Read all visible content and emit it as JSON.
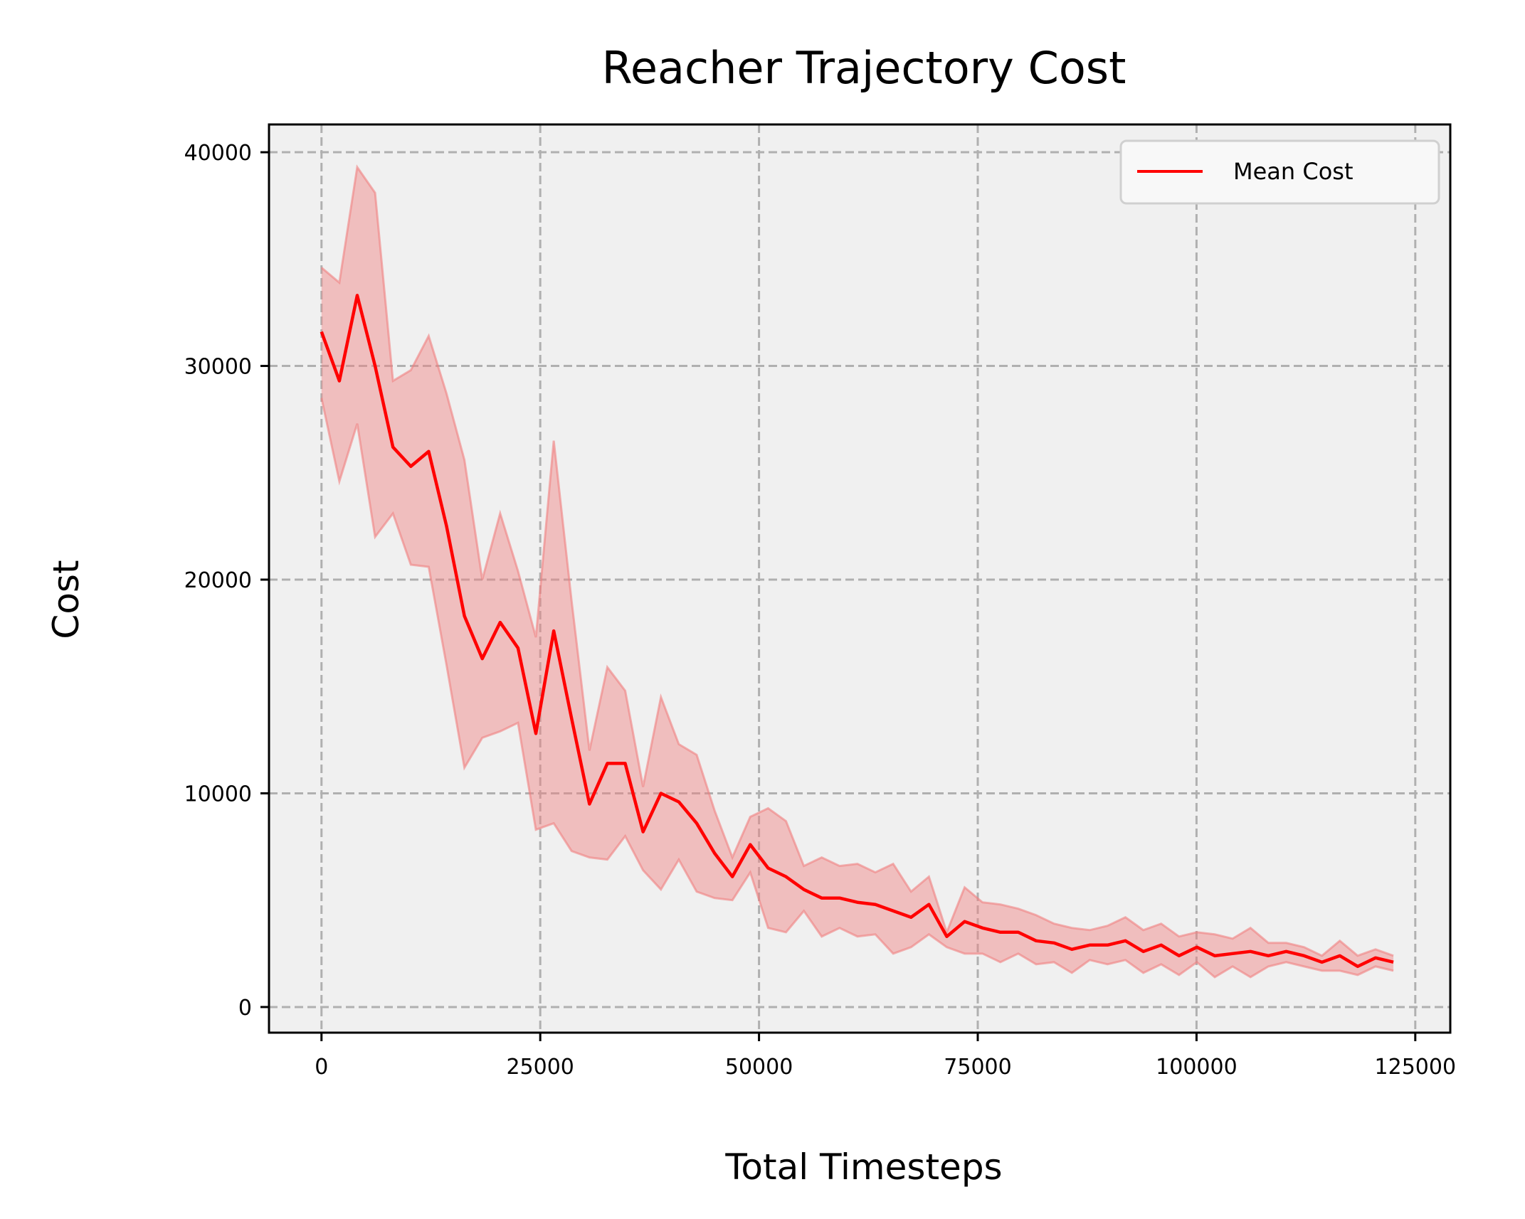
{
  "chart_data": {
    "type": "line",
    "title": "Reacher Trajectory Cost",
    "xlabel": "Total Timesteps",
    "ylabel": "Cost",
    "xlim": [
      -6000,
      129000
    ],
    "ylim": [
      -1200,
      41300
    ],
    "xticks": [
      0,
      25000,
      50000,
      75000,
      100000,
      125000
    ],
    "xtick_labels": [
      "0",
      "25000",
      "50000",
      "75000",
      "100000",
      "125000"
    ],
    "yticks": [
      0,
      10000,
      20000,
      30000,
      40000
    ],
    "ytick_labels": [
      "0",
      "10000",
      "20000",
      "30000",
      "40000"
    ],
    "grid": true,
    "legend_position": "top-right",
    "series": [
      {
        "name": "Mean Cost",
        "color": "#ff0000",
        "band_color": "#f08080",
        "x": [
          0,
          2042,
          4083,
          6125,
          8167,
          10208,
          12250,
          14292,
          16333,
          18375,
          20417,
          22458,
          24500,
          26542,
          28583,
          30625,
          32667,
          34708,
          36750,
          38792,
          40833,
          42875,
          44917,
          46958,
          49000,
          51042,
          53083,
          55125,
          57167,
          59208,
          61250,
          63292,
          65333,
          67375,
          69417,
          71458,
          73500,
          75542,
          77583,
          79625,
          81667,
          83708,
          85750,
          87792,
          89833,
          91875,
          93917,
          95958,
          98000,
          100042,
          102083,
          104125,
          106167,
          108208,
          110250,
          112292,
          114333,
          116375,
          118417,
          120458,
          122500
        ],
        "mean": [
          31600,
          29300,
          33300,
          30000,
          26200,
          25300,
          26000,
          22500,
          18300,
          16300,
          18000,
          16800,
          12800,
          17600,
          13500,
          9500,
          11400,
          11400,
          8200,
          10000,
          9600,
          8600,
          7200,
          6100,
          7600,
          6500,
          6100,
          5500,
          5100,
          5100,
          4900,
          4800,
          4500,
          4200,
          4800,
          3300,
          4000,
          3700,
          3500,
          3500,
          3100,
          3000,
          2700,
          2900,
          2900,
          3100,
          2600,
          2900,
          2400,
          2800,
          2400,
          2500,
          2600,
          2400,
          2600,
          2400,
          2100,
          2400,
          1900,
          2300,
          2100
        ],
        "upper": [
          34600,
          33900,
          39300,
          38100,
          29300,
          29800,
          31400,
          28700,
          25600,
          20000,
          23100,
          20400,
          17300,
          26500,
          19000,
          12000,
          15900,
          14800,
          10300,
          14500,
          12300,
          11800,
          9200,
          7000,
          8900,
          9300,
          8700,
          6600,
          7000,
          6600,
          6700,
          6300,
          6700,
          5400,
          6100,
          3500,
          5600,
          4900,
          4800,
          4600,
          4300,
          3900,
          3700,
          3600,
          3800,
          4200,
          3600,
          3900,
          3300,
          3500,
          3400,
          3200,
          3700,
          3000,
          3000,
          2800,
          2400,
          3100,
          2400,
          2700,
          2400
        ],
        "lower": [
          28500,
          24600,
          27300,
          22000,
          23100,
          20700,
          20600,
          16000,
          11200,
          12600,
          12900,
          13300,
          8300,
          8600,
          7300,
          7000,
          6900,
          8000,
          6400,
          5500,
          6900,
          5400,
          5100,
          5000,
          6300,
          3700,
          3500,
          4500,
          3300,
          3700,
          3300,
          3400,
          2500,
          2800,
          3400,
          2800,
          2500,
          2500,
          2100,
          2500,
          2000,
          2100,
          1600,
          2200,
          2000,
          2200,
          1600,
          2000,
          1500,
          2100,
          1400,
          1900,
          1400,
          1900,
          2100,
          1900,
          1700,
          1700,
          1500,
          1900,
          1700
        ]
      }
    ]
  }
}
